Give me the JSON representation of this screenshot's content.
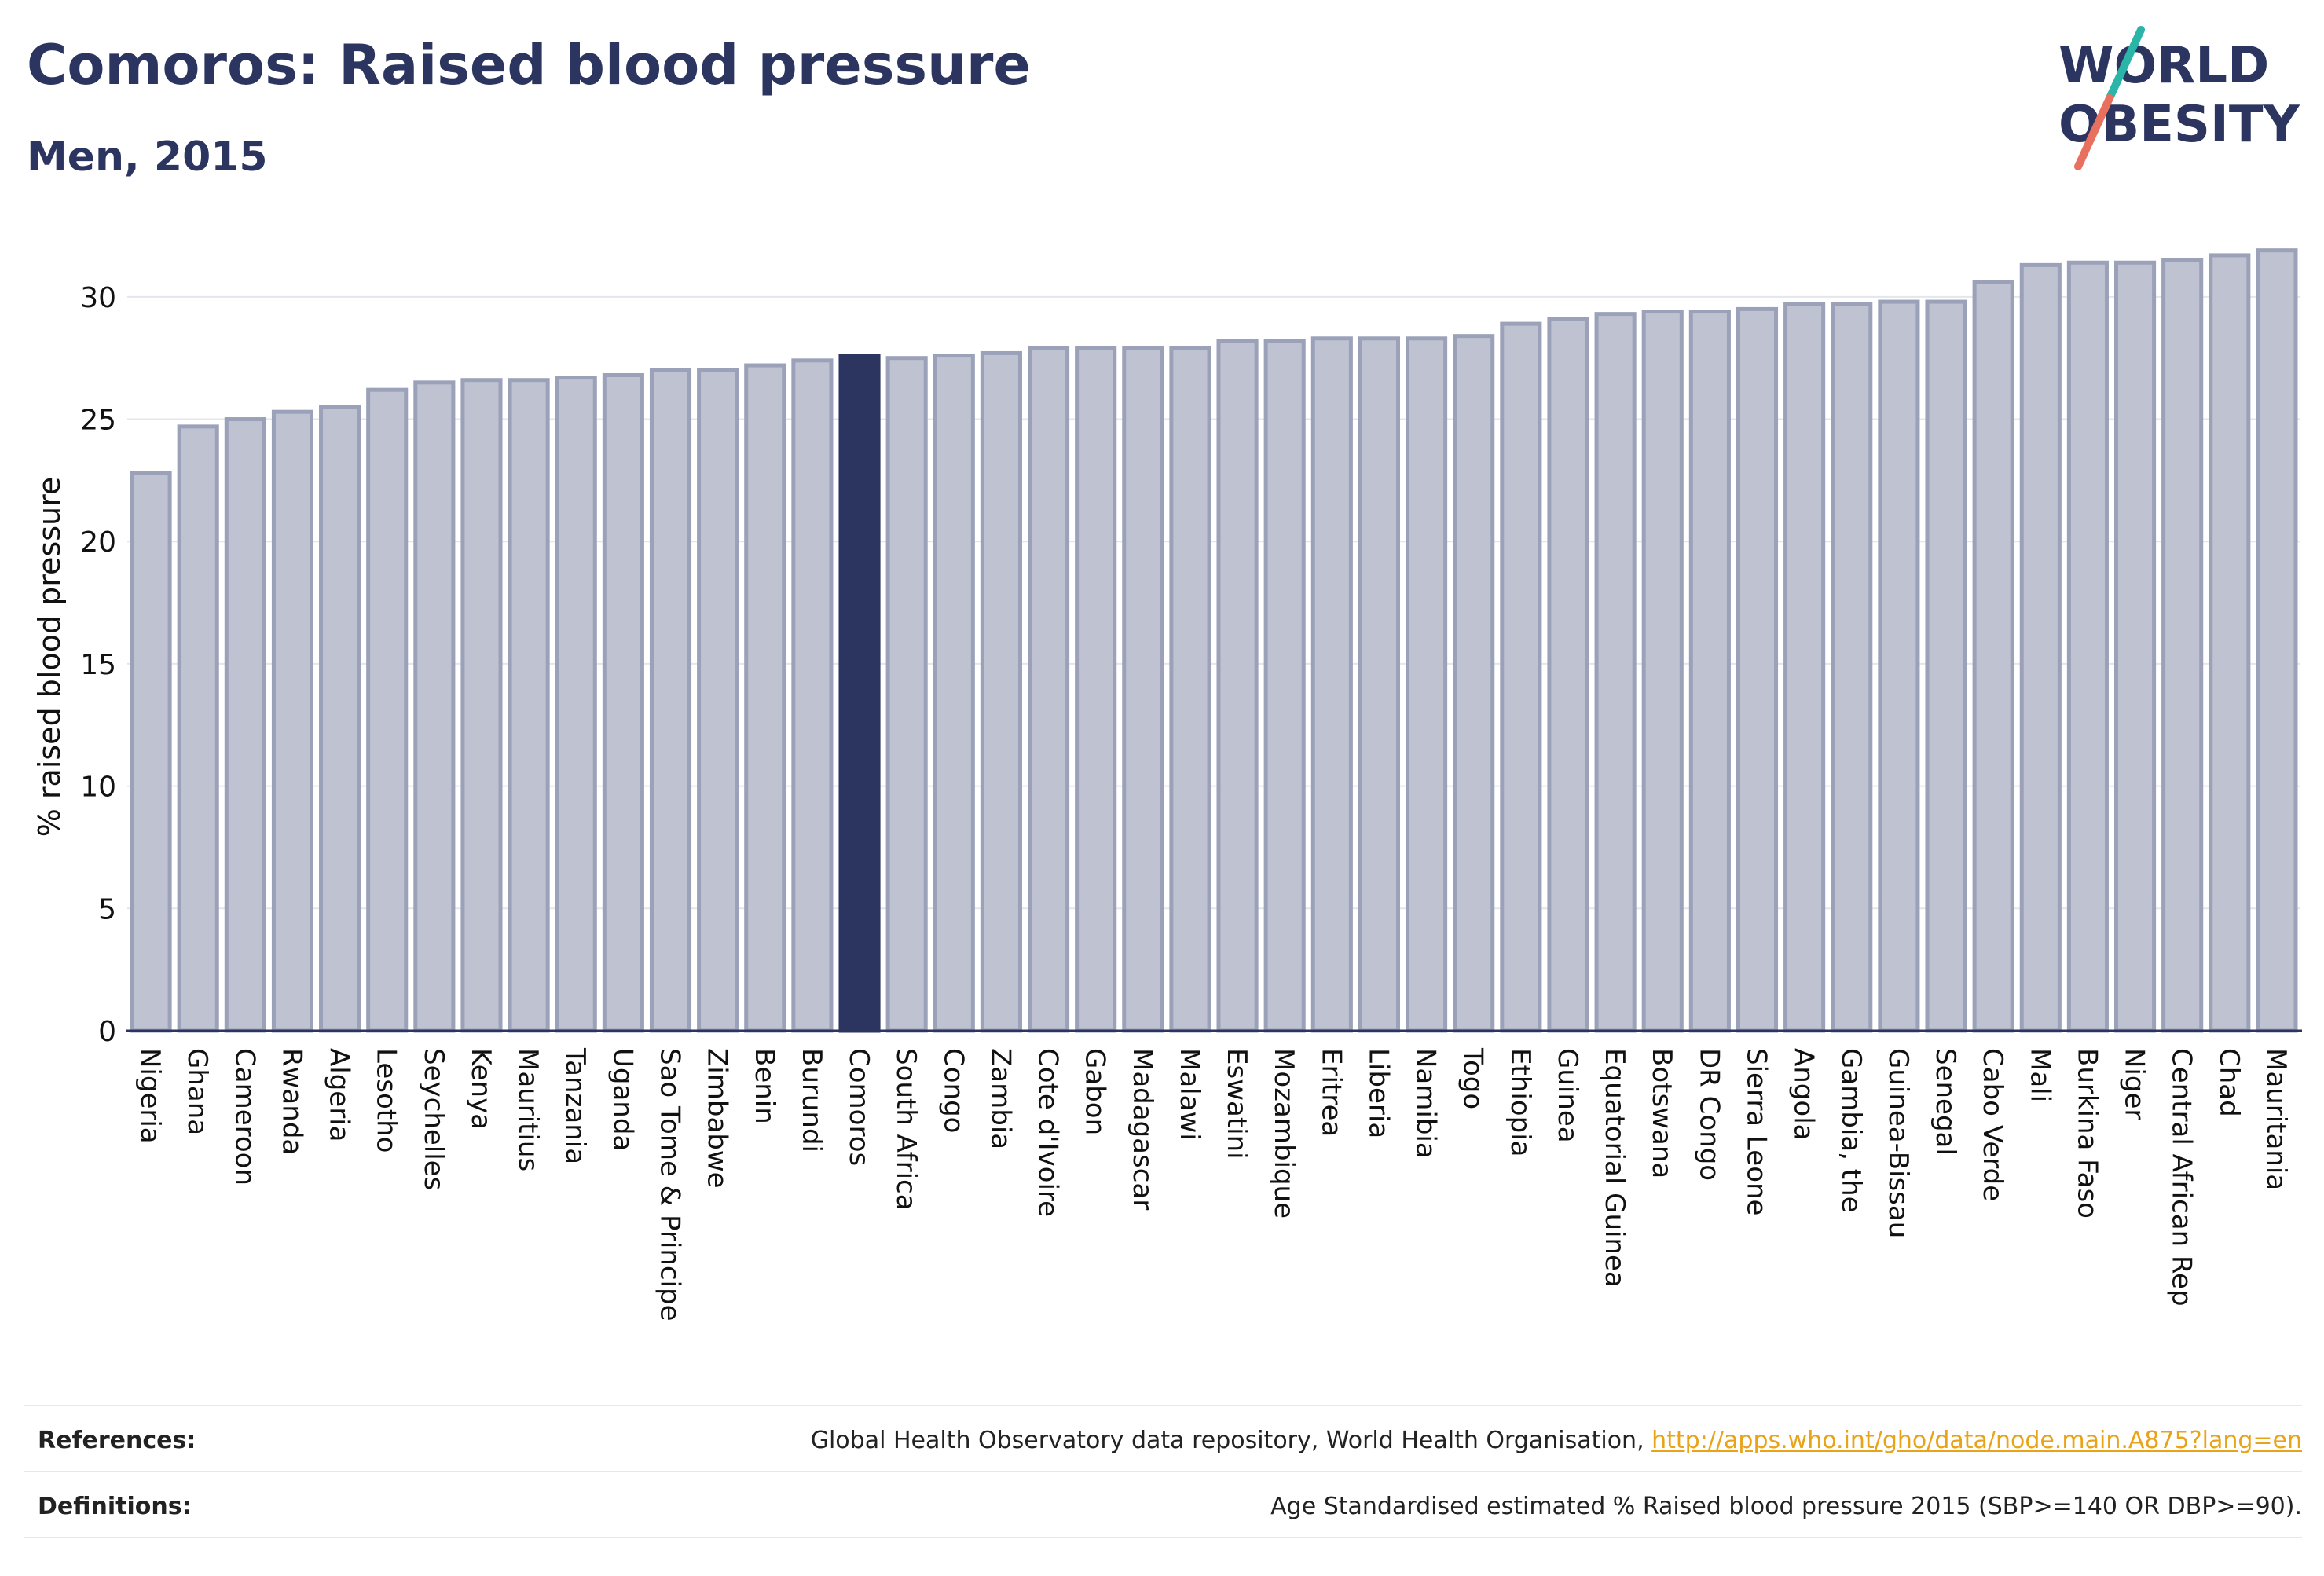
{
  "title": "Comoros: Raised blood pressure",
  "subtitle": "Men, 2015",
  "logo": {
    "line1": "WORLD",
    "line2": "OBESITY"
  },
  "colors": {
    "bar": "#bfc3d1",
    "bar_stroke": "#9aa1b8",
    "highlight": "#2b3560",
    "text": "#2b3560",
    "grid": "#e4e6ee",
    "logo_slash_teal": "#2bb5a8",
    "logo_slash_coral": "#e8705f",
    "link": "#e8a317"
  },
  "chart_data": {
    "type": "bar",
    "ylabel": "% raised blood pressure",
    "xlabel": "",
    "ylim": [
      0,
      32.5
    ],
    "yticks": [
      0,
      5,
      10,
      15,
      20,
      25,
      30
    ],
    "grid": true,
    "highlight": "Comoros",
    "categories": [
      "Nigeria",
      "Ghana",
      "Cameroon",
      "Rwanda",
      "Algeria",
      "Lesotho",
      "Seychelles",
      "Kenya",
      "Mauritius",
      "Tanzania",
      "Uganda",
      "Sao Tome & Principe",
      "Zimbabwe",
      "Benin",
      "Burundi",
      "Comoros",
      "South Africa",
      "Congo",
      "Zambia",
      "Cote d'Ivoire",
      "Gabon",
      "Madagascar",
      "Malawi",
      "Eswatini",
      "Mozambique",
      "Eritrea",
      "Liberia",
      "Namibia",
      "Togo",
      "Ethiopia",
      "Guinea",
      "Equatorial Guinea",
      "Botswana",
      "DR Congo",
      "Sierra Leone",
      "Angola",
      "Gambia, the",
      "Guinea-Bissau",
      "Senegal",
      "Cabo Verde",
      "Mali",
      "Burkina Faso",
      "Niger",
      "Central African Rep",
      "Chad",
      "Mauritania"
    ],
    "values": [
      22.8,
      24.7,
      25.0,
      25.3,
      25.5,
      26.2,
      26.5,
      26.6,
      26.6,
      26.7,
      26.8,
      27.0,
      27.0,
      27.2,
      27.4,
      27.6,
      27.5,
      27.6,
      27.7,
      27.9,
      27.9,
      27.9,
      27.9,
      28.2,
      28.2,
      28.3,
      28.3,
      28.3,
      28.4,
      28.9,
      29.1,
      29.3,
      29.4,
      29.4,
      29.5,
      29.7,
      29.7,
      29.8,
      29.8,
      30.6,
      31.3,
      31.4,
      31.4,
      31.5,
      31.7,
      31.9
    ]
  },
  "footer": {
    "references_label": "References:",
    "references_text": "Global Health Observatory data repository, World Health Organisation, ",
    "references_link": "http://apps.who.int/gho/data/node.main.A875?lang=en",
    "definitions_label": "Definitions:",
    "definitions_text": "Age Standardised estimated % Raised blood pressure 2015 (SBP>=140 OR DBP>=90)."
  }
}
